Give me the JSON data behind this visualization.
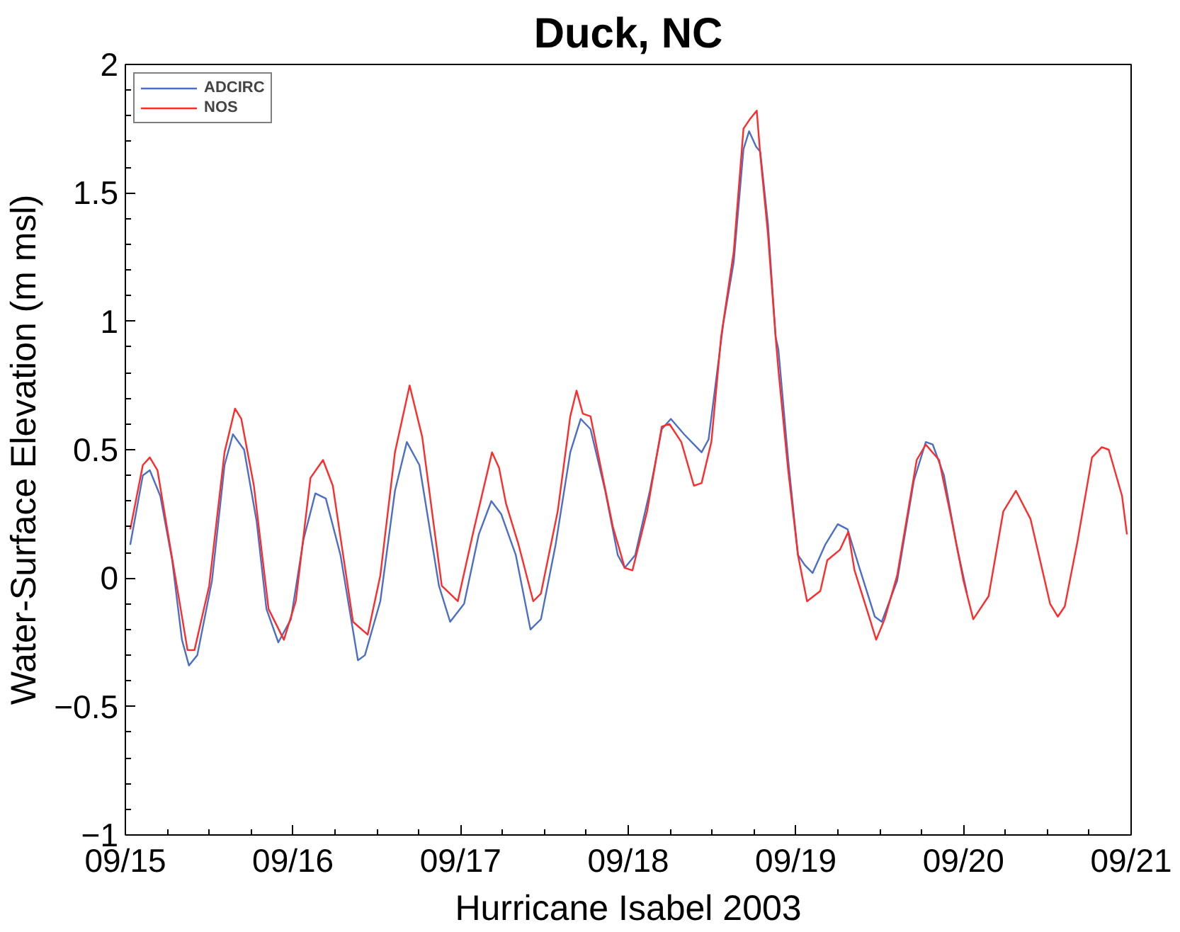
{
  "chart_data": {
    "type": "line",
    "title": "Duck, NC",
    "xlabel": "Hurricane Isabel 2003",
    "ylabel": "Water-Surface Elevation (m msl)",
    "xlim": [
      "2003-09-15",
      "2003-09-21"
    ],
    "ylim": [
      -1,
      2
    ],
    "xticks": [
      {
        "value": "2003-09-15",
        "label": "09/15"
      },
      {
        "value": "2003-09-16",
        "label": "09/16"
      },
      {
        "value": "2003-09-17",
        "label": "09/17"
      },
      {
        "value": "2003-09-18",
        "label": "09/18"
      },
      {
        "value": "2003-09-19",
        "label": "09/19"
      },
      {
        "value": "2003-09-20",
        "label": "09/20"
      },
      {
        "value": "2003-09-21",
        "label": "09/21"
      }
    ],
    "yticks": [
      -1,
      -0.5,
      0,
      0.5,
      1,
      1.5,
      2
    ],
    "grid": false,
    "legend": "top left",
    "marker": "none",
    "line_style": "solid",
    "series": [
      {
        "name": "ADCIRC",
        "color": "#4a6fc4",
        "x": [
          "2003-09-15T00:42",
          "2003-09-15T02:30",
          "2003-09-15T03:30",
          "2003-09-15T05:00",
          "2003-09-15T06:42",
          "2003-09-15T08:06",
          "2003-09-15T09:06",
          "2003-09-15T10:18",
          "2003-09-15T12:24",
          "2003-09-15T14:12",
          "2003-09-15T15:24",
          "2003-09-15T17:00",
          "2003-09-15T18:48",
          "2003-09-15T20:12",
          "2003-09-15T21:54",
          "2003-09-15T23:42",
          "2003-09-16T01:30",
          "2003-09-16T03:12",
          "2003-09-16T04:42",
          "2003-09-16T06:48",
          "2003-09-16T09:18",
          "2003-09-16T10:18",
          "2003-09-16T12:30",
          "2003-09-16T14:36",
          "2003-09-16T16:18",
          "2003-09-16T18:06",
          "2003-09-16T20:54",
          "2003-09-16T22:30",
          "2003-09-17T00:30",
          "2003-09-17T02:36",
          "2003-09-17T04:24",
          "2003-09-17T05:48",
          "2003-09-17T07:54",
          "2003-09-17T10:00",
          "2003-09-17T11:30",
          "2003-09-17T13:36",
          "2003-09-17T15:42",
          "2003-09-17T17:12",
          "2003-09-17T18:36",
          "2003-09-17T20:42",
          "2003-09-17T22:30",
          "2003-09-17T23:30",
          "2003-09-18T01:00",
          "2003-09-18T03:06",
          "2003-09-18T04:48",
          "2003-09-18T06:06",
          "2003-09-18T08:00",
          "2003-09-18T10:30",
          "2003-09-18T11:30",
          "2003-09-18T13:36",
          "2003-09-18T15:06",
          "2003-09-18T16:30",
          "2003-09-18T17:18",
          "2003-09-18T18:18",
          "2003-09-18T18:54",
          "2003-09-18T20:00",
          "2003-09-18T21:06",
          "2003-09-18T21:30",
          "2003-09-18T22:54",
          "2003-09-19T00:18",
          "2003-09-19T01:18",
          "2003-09-19T02:24",
          "2003-09-19T04:12",
          "2003-09-19T06:00",
          "2003-09-19T07:24",
          "2003-09-19T09:06",
          "2003-09-19T11:18",
          "2003-09-19T12:18",
          "2003-09-19T14:30",
          "2003-09-19T16:54",
          "2003-09-19T18:36",
          "2003-09-19T19:36",
          "2003-09-19T21:12",
          "2003-09-19T23:00",
          "2003-09-20T00:30"
        ],
        "values": [
          0.13,
          0.4,
          0.42,
          0.32,
          0.07,
          -0.24,
          -0.34,
          -0.3,
          -0.01,
          0.44,
          0.56,
          0.5,
          0.22,
          -0.12,
          -0.25,
          -0.16,
          0.15,
          0.33,
          0.31,
          0.09,
          -0.32,
          -0.3,
          -0.09,
          0.34,
          0.53,
          0.44,
          -0.03,
          -0.17,
          -0.1,
          0.17,
          0.3,
          0.25,
          0.09,
          -0.2,
          -0.16,
          0.13,
          0.49,
          0.62,
          0.58,
          0.34,
          0.09,
          0.04,
          0.09,
          0.34,
          0.58,
          0.62,
          0.56,
          0.49,
          0.54,
          0.99,
          1.23,
          1.67,
          1.74,
          1.68,
          1.66,
          1.38,
          0.94,
          0.89,
          0.46,
          0.09,
          0.05,
          0.02,
          0.13,
          0.21,
          0.19,
          0.04,
          -0.15,
          -0.17,
          -0.01,
          0.38,
          0.53,
          0.52,
          0.4,
          0.13,
          -0.06
        ]
      },
      {
        "name": "NOS",
        "color": "#ff2a2a",
        "x": [
          "2003-09-15T00:42",
          "2003-09-15T02:30",
          "2003-09-15T03:30",
          "2003-09-15T04:36",
          "2003-09-15T06:00",
          "2003-09-15T07:48",
          "2003-09-15T08:54",
          "2003-09-15T09:54",
          "2003-09-15T12:00",
          "2003-09-15T14:12",
          "2003-09-15T15:42",
          "2003-09-15T16:36",
          "2003-09-15T18:24",
          "2003-09-15T20:30",
          "2003-09-15T22:42",
          "2003-09-16T00:24",
          "2003-09-16T02:30",
          "2003-09-16T04:18",
          "2003-09-16T05:42",
          "2003-09-16T08:36",
          "2003-09-16T10:42",
          "2003-09-16T12:30",
          "2003-09-16T14:36",
          "2003-09-16T16:42",
          "2003-09-16T18:30",
          "2003-09-16T21:18",
          "2003-09-16T23:36",
          "2003-09-17T01:54",
          "2003-09-17T04:30",
          "2003-09-17T05:30",
          "2003-09-17T06:30",
          "2003-09-17T08:18",
          "2003-09-17T10:24",
          "2003-09-17T11:30",
          "2003-09-17T13:54",
          "2003-09-17T15:42",
          "2003-09-17T16:36",
          "2003-09-17T17:30",
          "2003-09-17T18:36",
          "2003-09-17T20:00",
          "2003-09-17T21:48",
          "2003-09-17T23:30",
          "2003-09-18T00:36",
          "2003-09-18T02:42",
          "2003-09-18T04:48",
          "2003-09-18T05:54",
          "2003-09-18T07:36",
          "2003-09-18T09:24",
          "2003-09-18T10:30",
          "2003-09-18T11:54",
          "2003-09-18T13:18",
          "2003-09-18T15:06",
          "2003-09-18T16:30",
          "2003-09-18T17:30",
          "2003-09-18T18:24",
          "2003-09-18T18:54",
          "2003-09-18T20:00",
          "2003-09-18T21:06",
          "2003-09-18T21:30",
          "2003-09-18T22:54",
          "2003-09-19T00:18",
          "2003-09-19T01:36",
          "2003-09-19T03:30",
          "2003-09-19T04:30",
          "2003-09-19T06:18",
          "2003-09-19T07:30",
          "2003-09-19T08:24",
          "2003-09-19T10:36",
          "2003-09-19T11:30",
          "2003-09-19T12:42",
          "2003-09-19T14:30",
          "2003-09-19T17:18",
          "2003-09-19T18:36",
          "2003-09-19T20:30",
          "2003-09-19T22:12",
          "2003-09-20T00:00",
          "2003-09-20T01:24",
          "2003-09-20T03:36",
          "2003-09-20T05:42",
          "2003-09-20T07:30",
          "2003-09-20T09:36",
          "2003-09-20T12:24",
          "2003-09-20T13:30",
          "2003-09-20T14:30",
          "2003-09-20T16:18",
          "2003-09-20T18:24",
          "2003-09-20T19:48",
          "2003-09-20T20:48",
          "2003-09-20T22:42",
          "2003-09-20T23:24"
        ],
        "values": [
          0.19,
          0.44,
          0.47,
          0.42,
          0.19,
          -0.1,
          -0.28,
          -0.28,
          -0.03,
          0.49,
          0.66,
          0.62,
          0.36,
          -0.12,
          -0.24,
          -0.09,
          0.39,
          0.46,
          0.36,
          -0.17,
          -0.22,
          0.01,
          0.49,
          0.75,
          0.55,
          -0.03,
          -0.09,
          0.19,
          0.49,
          0.43,
          0.29,
          0.13,
          -0.09,
          -0.06,
          0.26,
          0.63,
          0.73,
          0.64,
          0.63,
          0.44,
          0.2,
          0.04,
          0.03,
          0.26,
          0.59,
          0.6,
          0.53,
          0.36,
          0.37,
          0.53,
          0.94,
          1.27,
          1.75,
          1.79,
          1.82,
          1.65,
          1.34,
          0.94,
          0.81,
          0.42,
          0.09,
          -0.09,
          -0.05,
          0.07,
          0.11,
          0.18,
          0.03,
          -0.16,
          -0.24,
          -0.16,
          0.01,
          0.46,
          0.52,
          0.46,
          0.24,
          -0.01,
          -0.16,
          -0.07,
          0.26,
          0.34,
          0.23,
          -0.1,
          -0.15,
          -0.11,
          0.14,
          0.47,
          0.51,
          0.5,
          0.32,
          0.17
        ]
      }
    ]
  }
}
